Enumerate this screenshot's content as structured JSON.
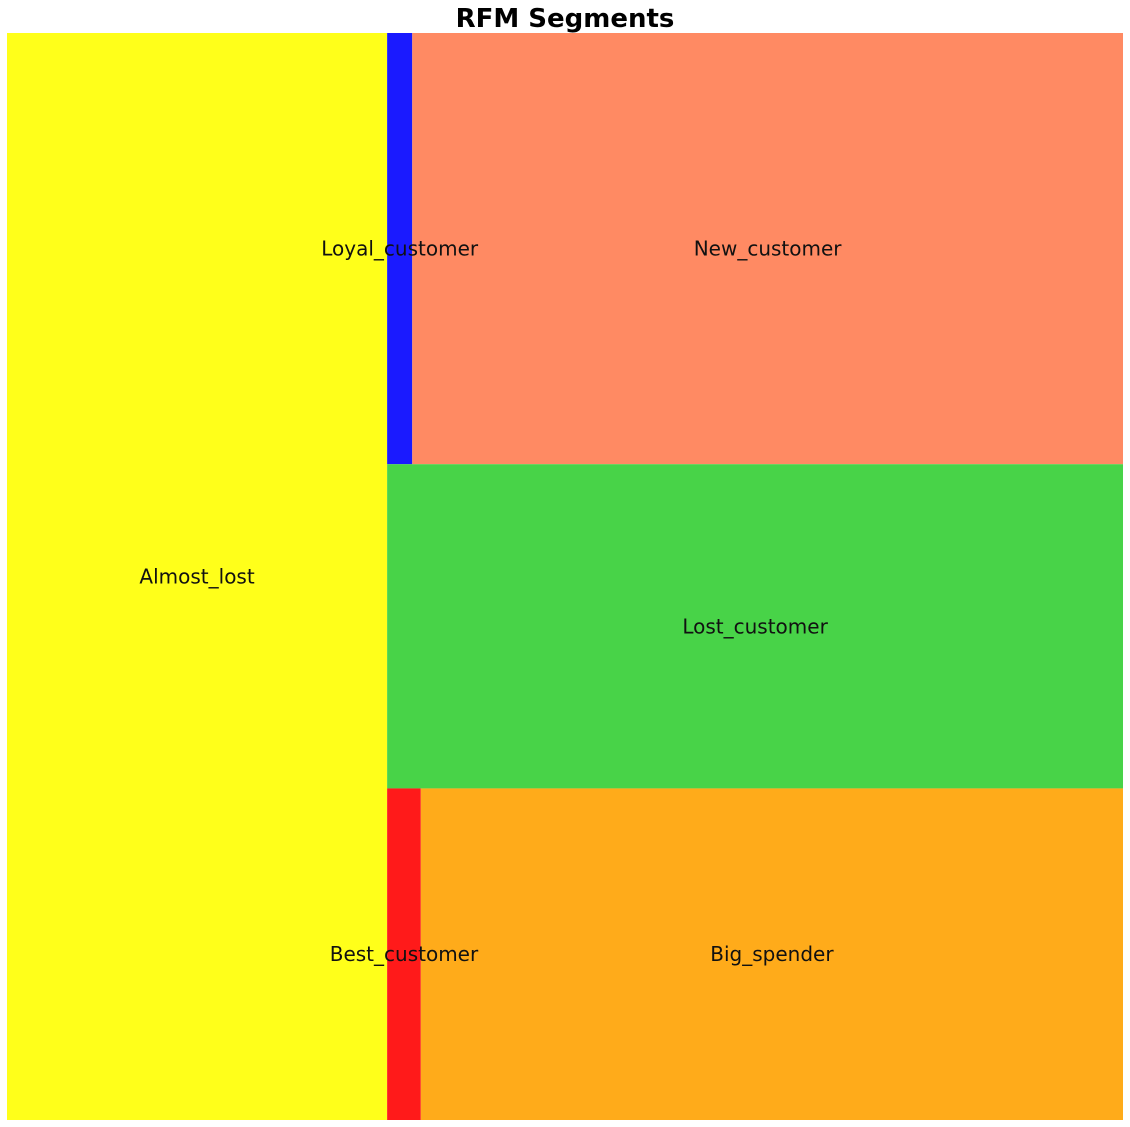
{
  "chart_data": {
    "type": "treemap",
    "title": "RFM Segments",
    "segments": [
      {
        "name": "Almost_lost",
        "value": 366.3,
        "color": "#ffff1a"
      },
      {
        "name": "Loyal_customer",
        "value": 9.6,
        "color": "#1a1aff"
      },
      {
        "name": "New_customer",
        "value": 271.7,
        "color": "#ff8a63"
      },
      {
        "name": "Lost_customer",
        "value": 211.5,
        "color": "#48d348"
      },
      {
        "name": "Best_customer",
        "value": 9.9,
        "color": "#ff1a1a"
      },
      {
        "name": "Big_spender",
        "value": 206.4,
        "color": "#ffab1a"
      }
    ]
  }
}
